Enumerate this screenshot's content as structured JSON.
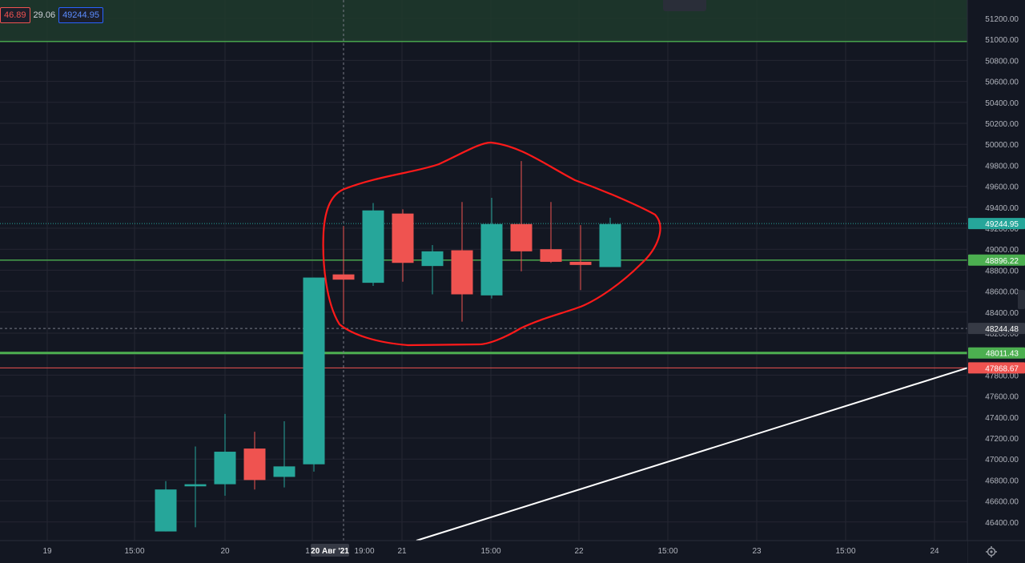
{
  "legend": {
    "sell": "46.89",
    "spread": "29.06",
    "buy": "49244.95"
  },
  "chart_data": {
    "type": "candlestick",
    "ylim": [
      46300,
      51300
    ],
    "y_ticks": [
      "51200.00",
      "51000.00",
      "50800.00",
      "50600.00",
      "50400.00",
      "50200.00",
      "50000.00",
      "49800.00",
      "49600.00",
      "49400.00",
      "49200.00",
      "49000.00",
      "48800.00",
      "48600.00",
      "48400.00",
      "48200.00",
      "48000.00",
      "47800.00",
      "47600.00",
      "47400.00",
      "47200.00",
      "47000.00",
      "46800.00",
      "46600.00",
      "46400.00"
    ],
    "x_ticks": [
      "19",
      "15:00",
      "20",
      "1",
      "20 Авг '21",
      "19:00",
      "21",
      "15:00",
      "22",
      "15:00",
      "23",
      "15:00",
      "24"
    ],
    "candles": [
      {
        "o": 46310,
        "h": 46790,
        "l": 46310,
        "c": 46710
      },
      {
        "o": 46740,
        "h": 47120,
        "l": 46350,
        "c": 46760
      },
      {
        "o": 46760,
        "h": 47430,
        "l": 46650,
        "c": 47070
      },
      {
        "o": 47100,
        "h": 47260,
        "l": 46710,
        "c": 46800
      },
      {
        "o": 46830,
        "h": 47360,
        "l": 46730,
        "c": 46930
      },
      {
        "o": 46950,
        "h": 48730,
        "l": 46880,
        "c": 48730
      },
      {
        "o": 48760,
        "h": 49220,
        "l": 48290,
        "c": 48710
      },
      {
        "o": 48680,
        "h": 49440,
        "l": 48650,
        "c": 49370
      },
      {
        "o": 49340,
        "h": 49380,
        "l": 48690,
        "c": 48870
      },
      {
        "o": 48840,
        "h": 49040,
        "l": 48570,
        "c": 48980
      },
      {
        "o": 48990,
        "h": 49450,
        "l": 48310,
        "c": 48570
      },
      {
        "o": 48560,
        "h": 49490,
        "l": 48530,
        "c": 49240
      },
      {
        "o": 49240,
        "h": 49840,
        "l": 48790,
        "c": 48980
      },
      {
        "o": 49000,
        "h": 49450,
        "l": 48870,
        "c": 48880
      },
      {
        "o": 48880,
        "h": 49230,
        "l": 48610,
        "c": 48850
      },
      {
        "o": 48830,
        "h": 49300,
        "l": 48830,
        "c": 49240
      }
    ],
    "price_labels": [
      {
        "value": 49244.95,
        "text": "49244.95",
        "color": "#26a69a"
      },
      {
        "value": 48896.22,
        "text": "48896.22",
        "color": "#4caf50"
      },
      {
        "value": 48244.48,
        "text": "48244.48",
        "color": "#363a45"
      },
      {
        "value": 48011.43,
        "text": "48011.43",
        "color": "#4caf50"
      },
      {
        "value": 47868.67,
        "text": "47868.67",
        "color": "#ef5350"
      }
    ],
    "zone_top": 51300,
    "zone_bottom": 50980,
    "trendline": {
      "start_x_label": "21",
      "start_value": 46300,
      "end_value": 47868.67
    },
    "colors": {
      "up": "#26a69a",
      "down": "#ef5350",
      "bg": "#131722",
      "grid": "#242733",
      "zone": "#1e3a2b",
      "annotation": "#ff1a1a"
    }
  }
}
